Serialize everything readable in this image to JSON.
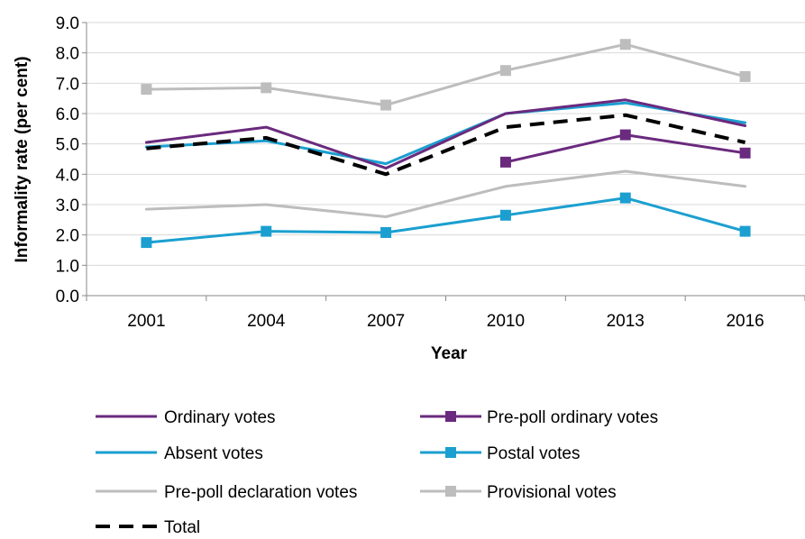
{
  "chart_data": {
    "type": "line",
    "title": "",
    "xlabel": "Year",
    "ylabel": "Informality rate (per cent)",
    "categories": [
      "2001",
      "2004",
      "2007",
      "2010",
      "2013",
      "2016"
    ],
    "ylim": [
      0,
      9
    ],
    "yticks": [
      "0.0",
      "1.0",
      "2.0",
      "3.0",
      "4.0",
      "5.0",
      "6.0",
      "7.0",
      "8.0",
      "9.0"
    ],
    "grid": true,
    "legend_position": "bottom",
    "series": [
      {
        "name": "Ordinary votes",
        "values": [
          5.05,
          5.55,
          4.2,
          6.0,
          6.45,
          5.6
        ],
        "color": "#6a2a7e",
        "marker": false,
        "dashed": false
      },
      {
        "name": "Pre-poll ordinary votes",
        "values": [
          null,
          null,
          null,
          4.4,
          5.3,
          4.7
        ],
        "color": "#6a2a7e",
        "marker": true,
        "dashed": false
      },
      {
        "name": "Absent votes",
        "values": [
          4.9,
          5.1,
          4.35,
          6.0,
          6.35,
          5.7
        ],
        "color": "#1b9fd0",
        "marker": false,
        "dashed": false
      },
      {
        "name": "Postal votes",
        "values": [
          1.75,
          2.12,
          2.08,
          2.65,
          3.22,
          2.12
        ],
        "color": "#1b9fd0",
        "marker": true,
        "dashed": false
      },
      {
        "name": "Pre-poll declaration votes",
        "values": [
          2.85,
          3.0,
          2.6,
          3.6,
          4.1,
          3.6
        ],
        "color": "#bdbdbd",
        "marker": false,
        "dashed": false
      },
      {
        "name": "Provisional votes",
        "values": [
          6.8,
          6.85,
          6.28,
          7.42,
          8.28,
          7.22
        ],
        "color": "#bdbdbd",
        "marker": true,
        "dashed": false
      },
      {
        "name": "Total",
        "values": [
          4.85,
          5.2,
          4.0,
          5.55,
          5.95,
          5.05
        ],
        "color": "#000000",
        "marker": false,
        "dashed": true
      }
    ]
  }
}
